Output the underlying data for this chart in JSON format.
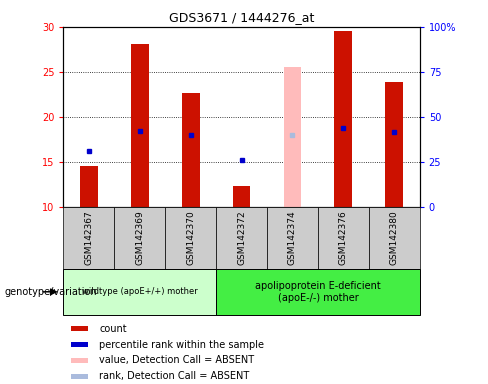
{
  "title": "GDS3671 / 1444276_at",
  "samples": [
    "GSM142367",
    "GSM142369",
    "GSM142370",
    "GSM142372",
    "GSM142374",
    "GSM142376",
    "GSM142380"
  ],
  "count_values": [
    14.6,
    28.1,
    22.7,
    12.4,
    25.6,
    29.5,
    23.9
  ],
  "percentile_rank": [
    16.3,
    18.5,
    18.0,
    15.3,
    18.0,
    18.8,
    18.4
  ],
  "absent_flags": [
    false,
    false,
    false,
    false,
    true,
    false,
    false
  ],
  "ylim_left": [
    10,
    30
  ],
  "ylim_right": [
    0,
    100
  ],
  "yticks_left": [
    10,
    15,
    20,
    25,
    30
  ],
  "yticks_right": [
    0,
    25,
    50,
    75,
    100
  ],
  "ytick_labels_right": [
    "0",
    "25",
    "50",
    "75",
    "100%"
  ],
  "bar_color_normal": "#cc1100",
  "bar_color_absent": "#ffbbbb",
  "rank_color_normal": "#0000cc",
  "rank_color_absent": "#aabbdd",
  "group1_samples": [
    0,
    1,
    2
  ],
  "group2_samples": [
    3,
    4,
    5,
    6
  ],
  "group1_label": "wildtype (apoE+/+) mother",
  "group2_label": "apolipoprotein E-deficient\n(apoE-/-) mother",
  "genotype_label": "genotype/variation",
  "legend_items": [
    {
      "color": "#cc1100",
      "label": "count"
    },
    {
      "color": "#0000cc",
      "label": "percentile rank within the sample"
    },
    {
      "color": "#ffbbbb",
      "label": "value, Detection Call = ABSENT"
    },
    {
      "color": "#aabbdd",
      "label": "rank, Detection Call = ABSENT"
    }
  ],
  "group1_bg": "#ccffcc",
  "group2_bg": "#44ee44",
  "tick_area_bg": "#cccccc",
  "bar_width": 0.35
}
